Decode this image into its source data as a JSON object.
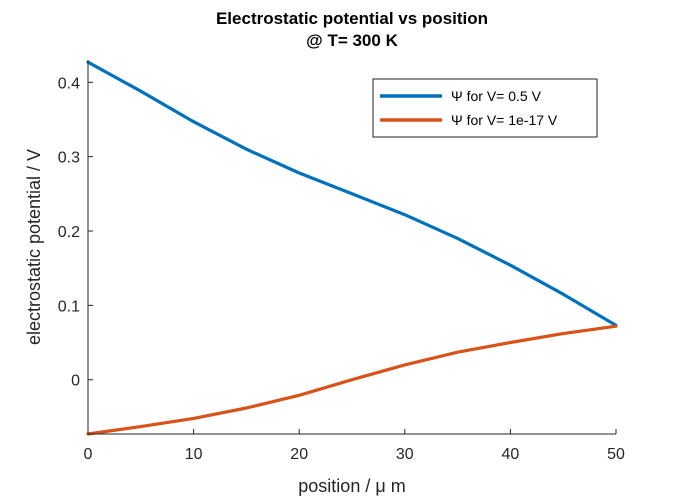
{
  "chart_data": {
    "type": "line",
    "title": "Electrostatic potential vs position",
    "subtitle": "@ T= 300 K",
    "xlabel": "position / μ m",
    "ylabel": "electrostatic potential / V",
    "xlim": [
      0,
      50
    ],
    "ylim": [
      -0.073,
      0.43
    ],
    "xticks": [
      "0",
      "10",
      "20",
      "30",
      "40",
      "50"
    ],
    "yticks": [
      "0",
      "0.1",
      "0.2",
      "0.3",
      "0.4"
    ],
    "grid": false,
    "legend_position": "top-right",
    "series": [
      {
        "name": "Ψ for V= 0.5 V",
        "color": "#0072BD",
        "x": [
          0,
          5,
          10,
          15,
          20,
          25,
          30,
          35,
          40,
          45,
          50
        ],
        "y": [
          0.427,
          0.388,
          0.347,
          0.31,
          0.278,
          0.25,
          0.222,
          0.19,
          0.154,
          0.115,
          0.073
        ]
      },
      {
        "name": "Ψ for V= 1e-17 V",
        "color": "#D95319",
        "x": [
          0,
          5,
          10,
          15,
          20,
          25,
          30,
          35,
          40,
          45,
          50
        ],
        "y": [
          -0.073,
          -0.063,
          -0.052,
          -0.038,
          -0.021,
          0.0,
          0.02,
          0.037,
          0.05,
          0.062,
          0.072
        ]
      }
    ]
  }
}
